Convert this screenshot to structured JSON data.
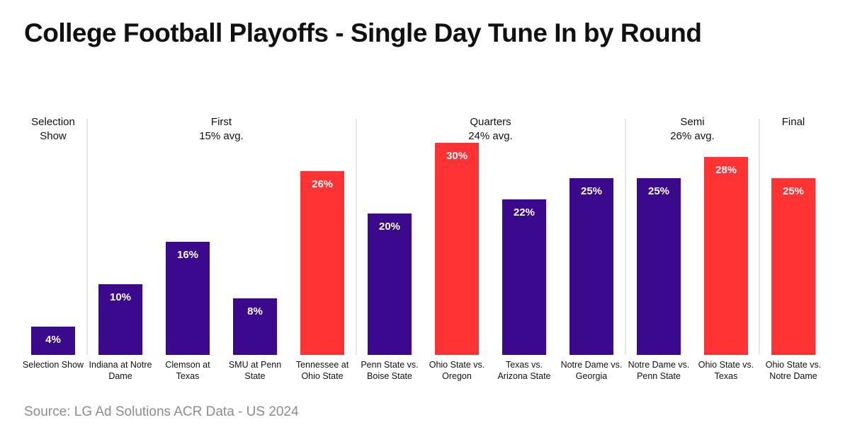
{
  "title": "College Football Playoffs - Single Day Tune In by Round",
  "source": "Source: LG Ad Solutions ACR Data - US 2024",
  "colors": {
    "regular": "#3b0a8c",
    "highlight": "#ff3333",
    "divider": "#cfcfcf",
    "label_text": "#111111",
    "bar_label_text": "#ffffff"
  },
  "chart_data": {
    "type": "bar",
    "title": "College Football Playoffs - Single Day Tune In by Round",
    "xlabel": "",
    "ylabel": "",
    "grid": false,
    "legend": "none",
    "value_format": "percent",
    "ylim": [
      0,
      34
    ],
    "categories": [
      "Selection Show",
      "Indiana at Notre Dame",
      "Clemson at Texas",
      "SMU at Penn State",
      "Tennessee at Ohio State",
      "Penn State vs. Boise State",
      "Ohio State vs. Oregon",
      "Texas vs. Arizona State",
      "Notre Dame vs. Georgia",
      "Notre Dame vs. Penn State",
      "Ohio State vs. Texas",
      "Ohio State vs. Notre Dame"
    ],
    "category_label_lines": [
      [
        "Selection Show"
      ],
      [
        "Indiana at Notre",
        "Dame"
      ],
      [
        "Clemson at",
        "Texas"
      ],
      [
        "SMU at Penn",
        "State"
      ],
      [
        "Tennessee at",
        "Ohio State"
      ],
      [
        "Penn State vs.",
        "Boise State"
      ],
      [
        "Ohio State vs.",
        "Oregon"
      ],
      [
        "Texas vs.",
        "Arizona State"
      ],
      [
        "Notre Dame vs.",
        "Georgia"
      ],
      [
        "Notre Dame vs.",
        "Penn State"
      ],
      [
        "Ohio State vs.",
        "Texas"
      ],
      [
        "Ohio State vs.",
        "Notre Dame"
      ]
    ],
    "values": [
      4,
      10,
      16,
      8,
      26,
      20,
      30,
      22,
      25,
      25,
      28,
      25
    ],
    "data_labels": [
      "4%",
      "10%",
      "16%",
      "8%",
      "26%",
      "20%",
      "30%",
      "22%",
      "25%",
      "25%",
      "28%",
      "25%"
    ],
    "highlighted": [
      false,
      false,
      false,
      false,
      true,
      false,
      true,
      false,
      false,
      false,
      true,
      true
    ],
    "groups": [
      {
        "name_lines": [
          "Selection",
          "Show"
        ],
        "avg_label": "",
        "start": 0,
        "end": 0
      },
      {
        "name_lines": [
          "First"
        ],
        "avg_label": "15% avg.",
        "start": 1,
        "end": 4
      },
      {
        "name_lines": [
          "Quarters"
        ],
        "avg_label": "24% avg.",
        "start": 5,
        "end": 8
      },
      {
        "name_lines": [
          "Semi"
        ],
        "avg_label": "26% avg.",
        "start": 9,
        "end": 10
      },
      {
        "name_lines": [
          "Final"
        ],
        "avg_label": "",
        "start": 11,
        "end": 11
      }
    ]
  }
}
